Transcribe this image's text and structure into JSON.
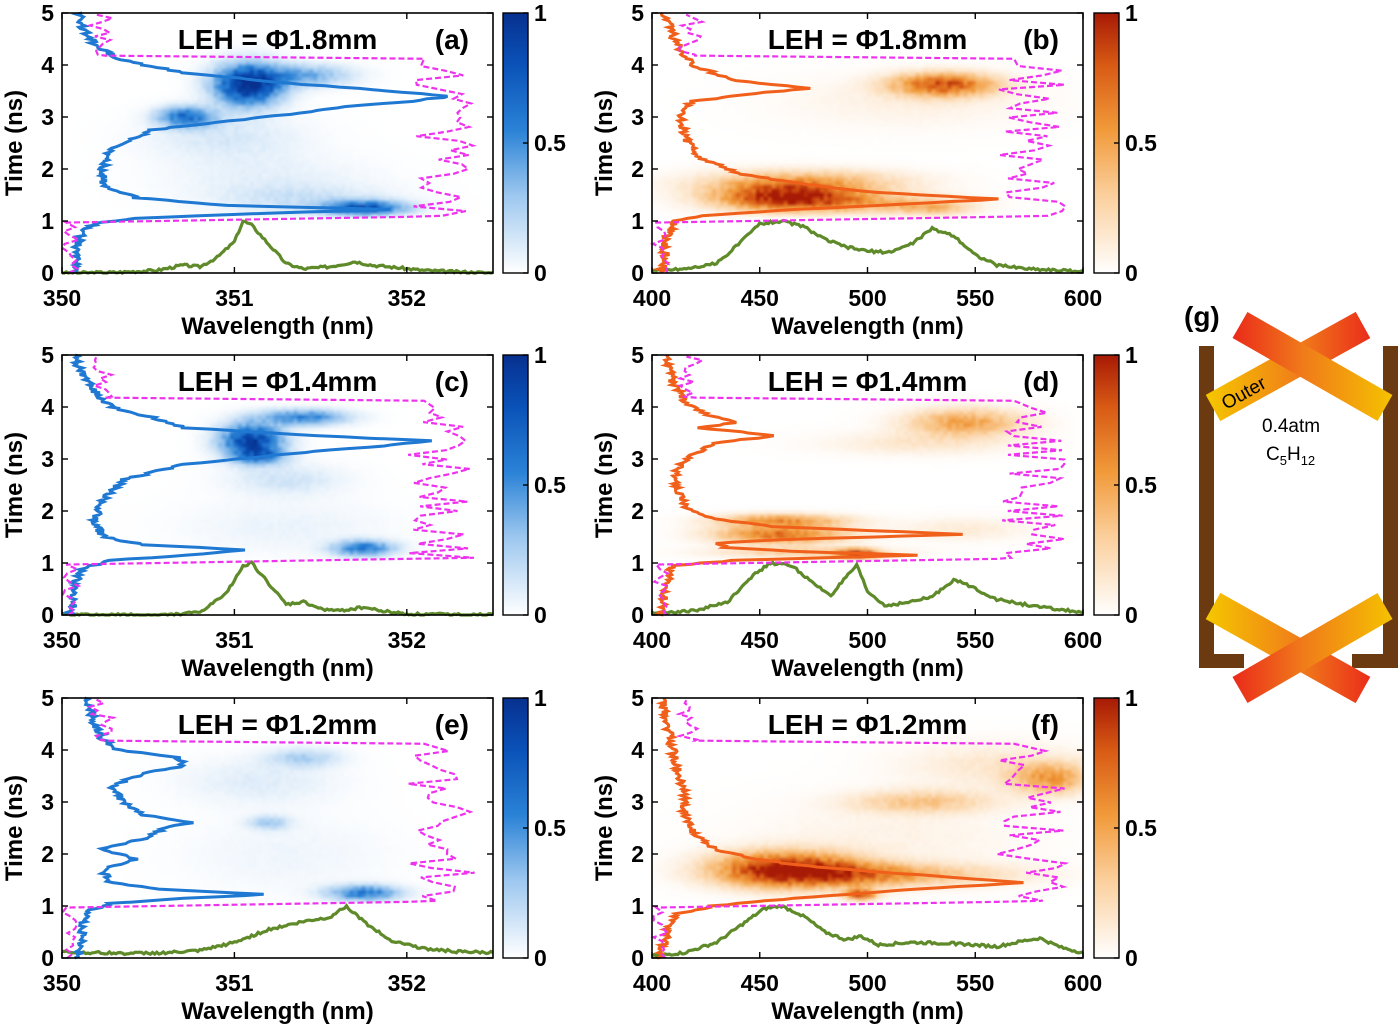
{
  "colors": {
    "blue_map": [
      "#ffffff",
      "#9cc7ef",
      "#2a82d6",
      "#0a52b8",
      "#07308f"
    ],
    "orange_map": [
      "#ffffff",
      "#fbcf9c",
      "#f19a3a",
      "#d85a14",
      "#a71a05"
    ],
    "blue_line": "#1f78d1",
    "orange_line": "#f0601a",
    "green_line": "#5f8a2a",
    "magenta_dash": "#ee33ee",
    "wall": "#6b3a10"
  },
  "chart_data": [
    {
      "panel": "a",
      "type": "heatmap",
      "colormap": "blue",
      "title": "LEH = Φ1.8mm",
      "label": "(a)",
      "xlabel": "Wavelength (nm)",
      "ylabel": "Time (ns)",
      "xlim": [
        350,
        352.5
      ],
      "ylim": [
        0,
        5
      ],
      "xticks": [
        "350",
        "351",
        "352"
      ],
      "yticks": [
        "0",
        "1",
        "2",
        "3",
        "4",
        "5"
      ],
      "colorbar": {
        "range": [
          0,
          1
        ],
        "ticks": [
          "0",
          "0.5",
          "1"
        ]
      },
      "spots": [
        {
          "x": 351.08,
          "y": 3.62,
          "sx": 0.13,
          "sy": 0.26,
          "v": 1.0
        },
        {
          "x": 350.72,
          "y": 3.0,
          "sx": 0.11,
          "sy": 0.13,
          "v": 0.6
        },
        {
          "x": 351.4,
          "y": 3.8,
          "sx": 0.18,
          "sy": 0.14,
          "v": 0.35
        },
        {
          "x": 350.95,
          "y": 2.6,
          "sx": 0.3,
          "sy": 0.3,
          "v": 0.1
        },
        {
          "x": 351.75,
          "y": 1.25,
          "sx": 0.16,
          "sy": 0.09,
          "v": 0.75
        },
        {
          "x": 351.4,
          "y": 1.4,
          "sx": 0.35,
          "sy": 0.2,
          "v": 0.12
        },
        {
          "x": 351.2,
          "y": 1.85,
          "sx": 0.4,
          "sy": 0.3,
          "v": 0.06
        }
      ],
      "time_profile": {
        "t": [
          0,
          0.2,
          0.4,
          0.6,
          0.8,
          0.95,
          1.05,
          1.15,
          1.22,
          1.3,
          1.45,
          1.7,
          2.0,
          2.4,
          2.75,
          2.9,
          3.05,
          3.2,
          3.3,
          3.4,
          3.5,
          3.65,
          3.85,
          4.1,
          4.4,
          4.7,
          5.0
        ],
        "v": [
          0.03,
          0.04,
          0.03,
          0.04,
          0.05,
          0.08,
          0.18,
          0.5,
          0.82,
          0.4,
          0.18,
          0.1,
          0.1,
          0.12,
          0.22,
          0.38,
          0.55,
          0.7,
          0.85,
          0.95,
          0.8,
          0.55,
          0.3,
          0.14,
          0.08,
          0.05,
          0.04
        ]
      },
      "spectrum": {
        "x": [
          350,
          350.3,
          350.55,
          350.7,
          350.8,
          350.9,
          351.0,
          351.05,
          351.1,
          351.2,
          351.3,
          351.4,
          351.55,
          351.7,
          351.8,
          351.95,
          352.1,
          352.3,
          352.5
        ],
        "v": [
          0.0,
          0.01,
          0.05,
          0.15,
          0.12,
          0.3,
          0.6,
          1.0,
          0.92,
          0.55,
          0.18,
          0.08,
          0.12,
          0.22,
          0.15,
          0.1,
          0.05,
          0.02,
          0.0
        ]
      }
    },
    {
      "panel": "b",
      "type": "heatmap",
      "colormap": "orange",
      "title": "LEH = Φ1.8mm",
      "label": "(b)",
      "xlabel": "Wavelength (nm)",
      "ylabel": "Time (ns)",
      "xlim": [
        400,
        600
      ],
      "ylim": [
        0,
        5
      ],
      "xticks": [
        "400",
        "450",
        "500",
        "550",
        "600"
      ],
      "yticks": [
        "0",
        "1",
        "2",
        "3",
        "4",
        "5"
      ],
      "colorbar": {
        "range": [
          0,
          1
        ],
        "ticks": [
          "0",
          "0.5",
          "1"
        ]
      },
      "spots": [
        {
          "x": 462,
          "y": 1.48,
          "sx": 22,
          "sy": 0.17,
          "v": 0.85
        },
        {
          "x": 490,
          "y": 1.35,
          "sx": 30,
          "sy": 0.13,
          "v": 0.35
        },
        {
          "x": 470,
          "y": 1.75,
          "sx": 32,
          "sy": 0.16,
          "v": 0.35
        },
        {
          "x": 530,
          "y": 1.25,
          "sx": 12,
          "sy": 0.09,
          "v": 0.3
        },
        {
          "x": 535,
          "y": 3.62,
          "sx": 16,
          "sy": 0.15,
          "v": 0.75
        },
        {
          "x": 520,
          "y": 3.3,
          "sx": 40,
          "sy": 0.35,
          "v": 0.07
        }
      ],
      "time_profile": {
        "t": [
          0,
          0.2,
          0.5,
          0.8,
          1.0,
          1.1,
          1.2,
          1.32,
          1.42,
          1.55,
          1.7,
          1.9,
          2.2,
          2.6,
          3.0,
          3.3,
          3.45,
          3.55,
          3.7,
          4.0,
          4.4,
          4.8,
          5.0
        ],
        "v": [
          0.02,
          0.03,
          0.03,
          0.04,
          0.06,
          0.12,
          0.3,
          0.6,
          0.85,
          0.55,
          0.38,
          0.22,
          0.12,
          0.08,
          0.07,
          0.1,
          0.25,
          0.38,
          0.2,
          0.1,
          0.06,
          0.04,
          0.03
        ]
      },
      "spectrum": {
        "x": [
          400,
          415,
          430,
          440,
          450,
          460,
          470,
          480,
          490,
          500,
          510,
          520,
          530,
          540,
          550,
          560,
          575,
          590,
          600
        ],
        "v": [
          0.05,
          0.08,
          0.18,
          0.55,
          0.95,
          1.0,
          0.9,
          0.65,
          0.5,
          0.42,
          0.4,
          0.55,
          0.85,
          0.72,
          0.35,
          0.15,
          0.08,
          0.05,
          0.03
        ]
      }
    },
    {
      "panel": "c",
      "type": "heatmap",
      "colormap": "blue",
      "title": "LEH = Φ1.4mm",
      "label": "(c)",
      "xlabel": "Wavelength (nm)",
      "ylabel": "Time (ns)",
      "xlim": [
        350,
        352.5
      ],
      "ylim": [
        0,
        5
      ],
      "xticks": [
        "350",
        "351",
        "352"
      ],
      "yticks": [
        "0",
        "1",
        "2",
        "3",
        "4",
        "5"
      ],
      "colorbar": {
        "range": [
          0,
          1
        ],
        "ticks": [
          "0",
          "0.5",
          "1"
        ]
      },
      "spots": [
        {
          "x": 351.1,
          "y": 3.35,
          "sx": 0.12,
          "sy": 0.22,
          "v": 0.85
        },
        {
          "x": 351.4,
          "y": 3.8,
          "sx": 0.17,
          "sy": 0.1,
          "v": 0.5
        },
        {
          "x": 351.15,
          "y": 3.05,
          "sx": 0.1,
          "sy": 0.1,
          "v": 0.4
        },
        {
          "x": 351.3,
          "y": 2.6,
          "sx": 0.22,
          "sy": 0.2,
          "v": 0.12
        },
        {
          "x": 351.75,
          "y": 1.28,
          "sx": 0.12,
          "sy": 0.1,
          "v": 0.55
        },
        {
          "x": 351.3,
          "y": 1.7,
          "sx": 0.4,
          "sy": 0.35,
          "v": 0.05
        }
      ],
      "time_profile": {
        "t": [
          0,
          0.3,
          0.6,
          0.9,
          1.05,
          1.15,
          1.25,
          1.35,
          1.5,
          1.8,
          2.2,
          2.6,
          2.9,
          3.1,
          3.25,
          3.35,
          3.45,
          3.6,
          3.8,
          4.0,
          4.3,
          4.6,
          5.0
        ],
        "v": [
          0.02,
          0.03,
          0.03,
          0.05,
          0.12,
          0.3,
          0.45,
          0.2,
          0.1,
          0.08,
          0.1,
          0.15,
          0.3,
          0.55,
          0.78,
          0.9,
          0.62,
          0.3,
          0.22,
          0.12,
          0.08,
          0.05,
          0.03
        ]
      },
      "spectrum": {
        "x": [
          350,
          350.6,
          350.8,
          350.95,
          351.05,
          351.1,
          351.2,
          351.3,
          351.4,
          351.5,
          351.6,
          351.75,
          351.85,
          352.0,
          352.5
        ],
        "v": [
          0.0,
          0.0,
          0.05,
          0.4,
          0.95,
          1.0,
          0.6,
          0.2,
          0.25,
          0.12,
          0.08,
          0.15,
          0.08,
          0.02,
          0.0
        ]
      }
    },
    {
      "panel": "d",
      "type": "heatmap",
      "colormap": "orange",
      "title": "LEH = Φ1.4mm",
      "label": "(d)",
      "xlabel": "Wavelength (nm)",
      "ylabel": "Time (ns)",
      "xlim": [
        400,
        600
      ],
      "ylim": [
        0,
        5
      ],
      "xticks": [
        "400",
        "450",
        "500",
        "550",
        "600"
      ],
      "yticks": [
        "0",
        "1",
        "2",
        "3",
        "4",
        "5"
      ],
      "colorbar": {
        "range": [
          0,
          1
        ],
        "ticks": [
          "0",
          "0.5",
          "1"
        ]
      },
      "spots": [
        {
          "x": 495,
          "y": 1.17,
          "sx": 6,
          "sy": 0.06,
          "v": 1.0
        },
        {
          "x": 460,
          "y": 1.55,
          "sx": 20,
          "sy": 0.12,
          "v": 0.65
        },
        {
          "x": 460,
          "y": 1.82,
          "sx": 20,
          "sy": 0.08,
          "v": 0.5
        },
        {
          "x": 470,
          "y": 1.2,
          "sx": 28,
          "sy": 0.07,
          "v": 0.25
        },
        {
          "x": 545,
          "y": 3.7,
          "sx": 18,
          "sy": 0.18,
          "v": 0.45
        },
        {
          "x": 525,
          "y": 3.3,
          "sx": 30,
          "sy": 0.15,
          "v": 0.12
        },
        {
          "x": 545,
          "y": 1.65,
          "sx": 20,
          "sy": 0.15,
          "v": 0.1
        }
      ],
      "time_profile": {
        "t": [
          0,
          0.3,
          0.7,
          0.95,
          1.05,
          1.15,
          1.22,
          1.3,
          1.38,
          1.45,
          1.55,
          1.62,
          1.7,
          1.8,
          1.9,
          2.1,
          2.4,
          2.8,
          3.0,
          3.3,
          3.45,
          3.6,
          3.7,
          3.85,
          4.1,
          4.5,
          5.0
        ],
        "v": [
          0.02,
          0.03,
          0.04,
          0.05,
          0.2,
          0.65,
          0.35,
          0.18,
          0.15,
          0.32,
          0.75,
          0.55,
          0.3,
          0.2,
          0.12,
          0.08,
          0.06,
          0.06,
          0.08,
          0.15,
          0.3,
          0.12,
          0.2,
          0.14,
          0.08,
          0.05,
          0.03
        ]
      },
      "spectrum": {
        "x": [
          400,
          420,
          435,
          445,
          455,
          465,
          475,
          483,
          490,
          495,
          500,
          508,
          520,
          530,
          540,
          548,
          560,
          580,
          600
        ],
        "v": [
          0.04,
          0.08,
          0.25,
          0.7,
          1.0,
          0.95,
          0.6,
          0.38,
          0.72,
          0.95,
          0.45,
          0.18,
          0.25,
          0.35,
          0.68,
          0.55,
          0.3,
          0.15,
          0.05
        ]
      }
    },
    {
      "panel": "e",
      "type": "heatmap",
      "colormap": "blue",
      "title": "LEH = Φ1.2mm",
      "label": "(e)",
      "xlabel": "Wavelength (nm)",
      "ylabel": "Time (ns)",
      "xlim": [
        350,
        352.5
      ],
      "ylim": [
        0,
        5
      ],
      "xticks": [
        "350",
        "351",
        "352"
      ],
      "yticks": [
        "0",
        "1",
        "2",
        "3",
        "4",
        "5"
      ],
      "colorbar": {
        "range": [
          0,
          1
        ],
        "ticks": [
          "0",
          "0.5",
          "1"
        ]
      },
      "spots": [
        {
          "x": 351.75,
          "y": 1.25,
          "sx": 0.14,
          "sy": 0.1,
          "v": 0.55
        },
        {
          "x": 351.2,
          "y": 2.6,
          "sx": 0.08,
          "sy": 0.09,
          "v": 0.22
        },
        {
          "x": 351.4,
          "y": 3.85,
          "sx": 0.14,
          "sy": 0.12,
          "v": 0.2
        },
        {
          "x": 351.15,
          "y": 3.4,
          "sx": 0.3,
          "sy": 0.3,
          "v": 0.08
        },
        {
          "x": 351.3,
          "y": 2.0,
          "sx": 0.4,
          "sy": 0.5,
          "v": 0.04
        }
      ],
      "time_profile": {
        "t": [
          0,
          0.3,
          0.6,
          0.9,
          1.05,
          1.15,
          1.22,
          1.32,
          1.45,
          1.7,
          1.9,
          2.1,
          2.3,
          2.5,
          2.6,
          2.75,
          3.0,
          3.3,
          3.55,
          3.7,
          3.85,
          4.0,
          4.2,
          4.5,
          5.0
        ],
        "v": [
          0.04,
          0.05,
          0.05,
          0.06,
          0.12,
          0.3,
          0.5,
          0.25,
          0.12,
          0.1,
          0.18,
          0.1,
          0.2,
          0.25,
          0.32,
          0.2,
          0.15,
          0.12,
          0.2,
          0.3,
          0.28,
          0.14,
          0.1,
          0.08,
          0.06
        ]
      },
      "spectrum": {
        "x": [
          350,
          350.2,
          350.4,
          350.6,
          350.8,
          351.0,
          351.2,
          351.4,
          351.55,
          351.65,
          351.75,
          351.9,
          352.1,
          352.3,
          352.5
        ],
        "v": [
          0.12,
          0.1,
          0.09,
          0.1,
          0.14,
          0.3,
          0.55,
          0.7,
          0.78,
          1.0,
          0.7,
          0.35,
          0.18,
          0.12,
          0.1
        ]
      }
    },
    {
      "panel": "f",
      "type": "heatmap",
      "colormap": "orange",
      "title": "LEH = Φ1.2mm",
      "label": "(f)",
      "xlabel": "Wavelength (nm)",
      "ylabel": "Time (ns)",
      "xlim": [
        400,
        600
      ],
      "ylim": [
        0,
        5
      ],
      "xticks": [
        "400",
        "450",
        "500",
        "550",
        "600"
      ],
      "yticks": [
        "0",
        "1",
        "2",
        "3",
        "4",
        "5"
      ],
      "colorbar": {
        "range": [
          0,
          1
        ],
        "ticks": [
          "0",
          "0.5",
          "1"
        ]
      },
      "spots": [
        {
          "x": 462,
          "y": 1.7,
          "sx": 22,
          "sy": 0.22,
          "v": 1.0
        },
        {
          "x": 495,
          "y": 1.6,
          "sx": 25,
          "sy": 0.15,
          "v": 0.5
        },
        {
          "x": 497,
          "y": 1.22,
          "sx": 5,
          "sy": 0.07,
          "v": 0.75
        },
        {
          "x": 540,
          "y": 1.6,
          "sx": 30,
          "sy": 0.15,
          "v": 0.15
        },
        {
          "x": 525,
          "y": 3.0,
          "sx": 22,
          "sy": 0.15,
          "v": 0.28
        },
        {
          "x": 585,
          "y": 3.45,
          "sx": 12,
          "sy": 0.2,
          "v": 0.45
        },
        {
          "x": 560,
          "y": 3.7,
          "sx": 30,
          "sy": 0.3,
          "v": 0.12
        },
        {
          "x": 510,
          "y": 2.3,
          "sx": 45,
          "sy": 0.5,
          "v": 0.06
        }
      ],
      "time_profile": {
        "t": [
          0,
          0.3,
          0.6,
          0.85,
          1.0,
          1.15,
          1.3,
          1.45,
          1.6,
          1.75,
          1.9,
          2.1,
          2.4,
          2.8,
          3.1,
          3.4,
          3.7,
          4.0,
          4.4,
          4.8,
          5.0
        ],
        "v": [
          0.02,
          0.03,
          0.04,
          0.06,
          0.15,
          0.35,
          0.6,
          0.9,
          0.65,
          0.4,
          0.25,
          0.15,
          0.1,
          0.08,
          0.08,
          0.07,
          0.06,
          0.05,
          0.04,
          0.03,
          0.03
        ]
      },
      "spectrum": {
        "x": [
          400,
          415,
          430,
          442,
          452,
          460,
          470,
          480,
          490,
          497,
          505,
          520,
          540,
          560,
          575,
          580,
          590,
          600
        ],
        "v": [
          0.04,
          0.1,
          0.3,
          0.65,
          0.95,
          1.0,
          0.82,
          0.5,
          0.35,
          0.42,
          0.25,
          0.3,
          0.28,
          0.22,
          0.35,
          0.38,
          0.2,
          0.1
        ]
      }
    }
  ],
  "schematic": {
    "label": "(g)",
    "beam_label": "Outer",
    "gas_pressure": "0.4atm",
    "gas_formula": "C",
    "gas_formula_sub1": "5",
    "gas_formula_mid": "H",
    "gas_formula_sub2": "12"
  }
}
